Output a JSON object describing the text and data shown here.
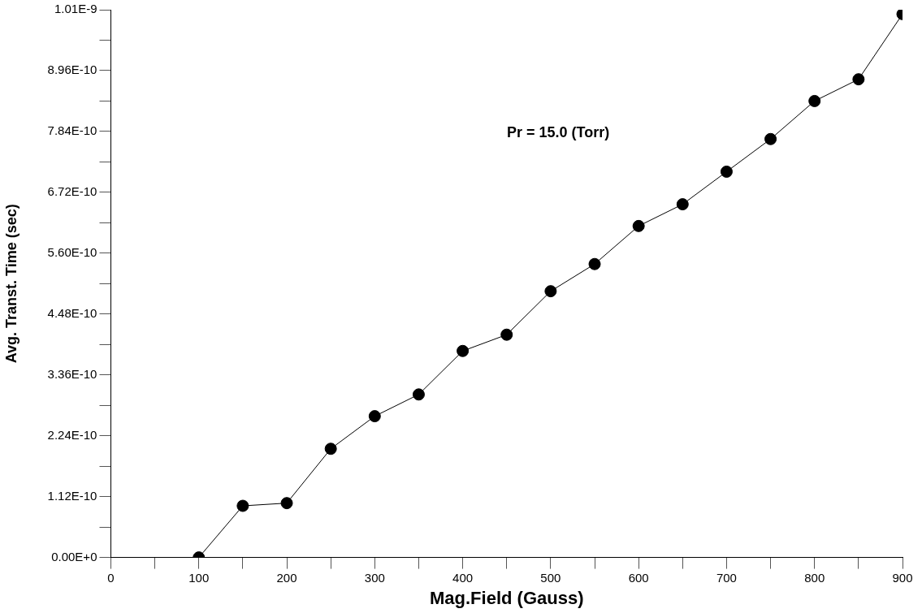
{
  "chart_data": {
    "type": "line",
    "xlabel": "Mag.Field (Gauss)",
    "ylabel": "Avg. Transt. Time (sec)",
    "annotations": [
      "Pr = 15.0 (Torr)"
    ],
    "x": [
      100,
      150,
      200,
      250,
      300,
      350,
      400,
      450,
      500,
      550,
      600,
      650,
      700,
      750,
      800,
      850,
      900
    ],
    "series": [
      {
        "color": "#000000",
        "values": [
          0,
          9.5e-11,
          1e-10,
          2e-10,
          2.6e-10,
          3e-10,
          3.8e-10,
          4.1e-10,
          4.9e-10,
          5.4e-10,
          6.1e-10,
          6.5e-10,
          7.1e-10,
          7.7e-10,
          8.4e-10,
          8.8e-10,
          1e-09
        ]
      }
    ],
    "xlim": [
      0,
      900
    ],
    "ylim": [
      0,
      1.008e-09
    ],
    "xticks": [
      0,
      {
        "value": 50,
        "label": null
      },
      100,
      {
        "value": 150,
        "label": null
      },
      200,
      {
        "value": 250,
        "label": null
      },
      300,
      {
        "value": 350,
        "label": null
      },
      400,
      {
        "value": 450,
        "label": null
      },
      500,
      {
        "value": 550,
        "label": null
      },
      600,
      {
        "value": 650,
        "label": null
      },
      700,
      {
        "value": 750,
        "label": null
      },
      800,
      {
        "value": 850,
        "label": null
      },
      900
    ],
    "yticks": [
      {
        "value": 0,
        "label": "0.00E+0"
      },
      {
        "value": 5.6e-11,
        "label": null
      },
      {
        "value": 1.12e-10,
        "label": "1.12E-10"
      },
      {
        "value": 1.68e-10,
        "label": null
      },
      {
        "value": 2.24e-10,
        "label": "2.24E-10"
      },
      {
        "value": 2.8e-10,
        "label": null
      },
      {
        "value": 3.36e-10,
        "label": "3.36E-10"
      },
      {
        "value": 3.92e-10,
        "label": null
      },
      {
        "value": 4.48e-10,
        "label": "4.48E-10"
      },
      {
        "value": 5.04e-10,
        "label": null
      },
      {
        "value": 5.6e-10,
        "label": "5.60E-10"
      },
      {
        "value": 6.16e-10,
        "label": null
      },
      {
        "value": 6.72e-10,
        "label": "6.72E-10"
      },
      {
        "value": 7.28e-10,
        "label": null
      },
      {
        "value": 7.84e-10,
        "label": "7.84E-10"
      },
      {
        "value": 8.4e-10,
        "label": null
      },
      {
        "value": 8.96e-10,
        "label": "8.96E-10"
      },
      {
        "value": 9.52e-10,
        "label": null
      },
      {
        "value": 1.008e-09,
        "label": "1.01E-9"
      }
    ],
    "grid": false,
    "legend": false,
    "marker": "circle",
    "line_style": "solid"
  }
}
